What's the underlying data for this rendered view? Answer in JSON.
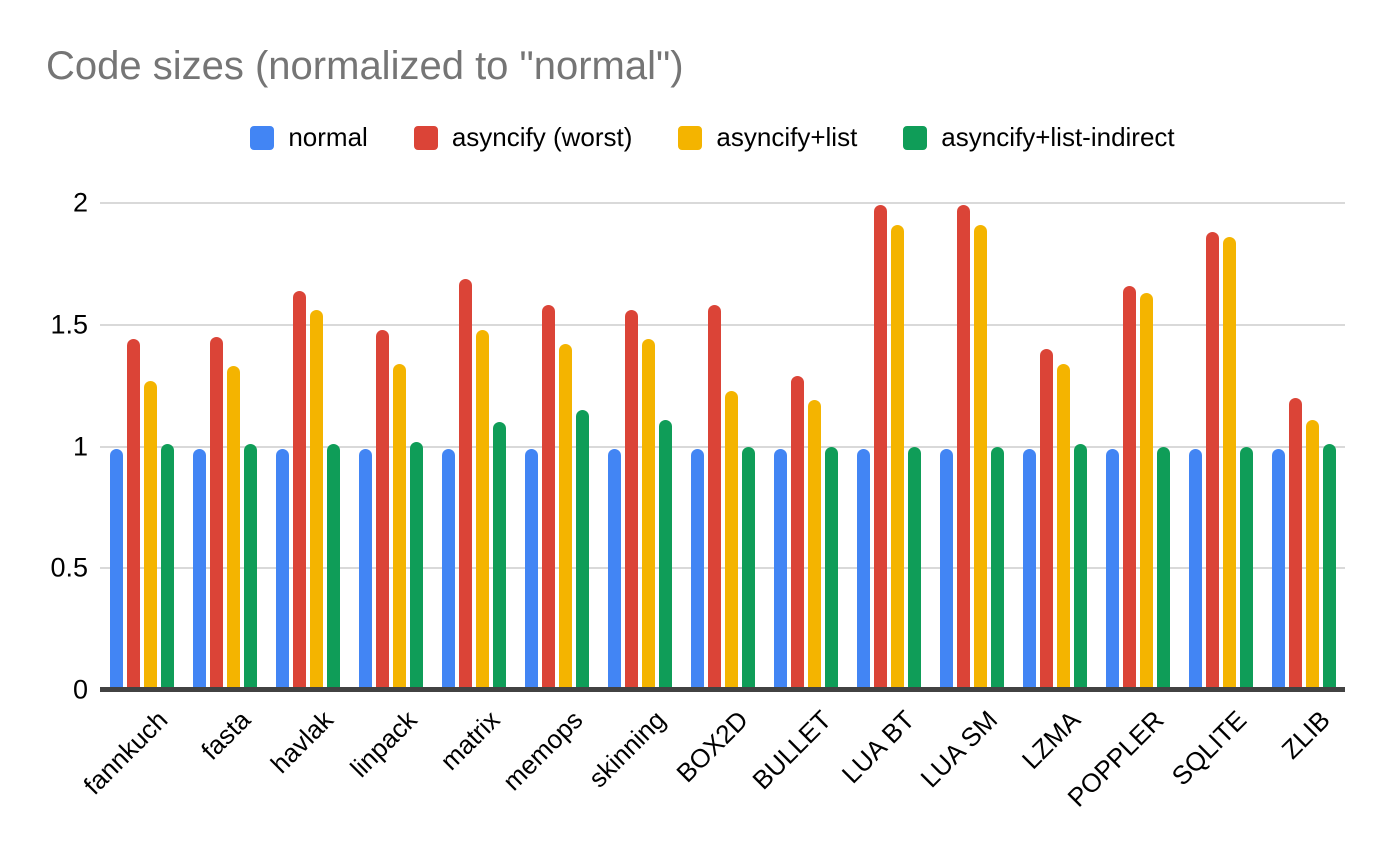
{
  "title": "Code sizes (normalized to \"normal\")",
  "title_color": "#757575",
  "chart_data": {
    "type": "bar",
    "title": "Code sizes (normalized to \"normal\")",
    "xlabel": "",
    "ylabel": "",
    "ylim": [
      0,
      2
    ],
    "y_ticks": [
      0,
      0.5,
      1,
      1.5,
      2
    ],
    "grid": true,
    "legend_position": "top",
    "axis_line_color": "#424242",
    "grid_color": "#d9d9d9",
    "categories": [
      "fannkuch",
      "fasta",
      "havlak",
      "linpack",
      "matrix",
      "memops",
      "skinning",
      "BOX2D",
      "BULLET",
      "LUA BT",
      "LUA SM",
      "LZMA",
      "POPPLER",
      "SQLITE",
      "ZLIB"
    ],
    "series": [
      {
        "name": "normal",
        "color": "#4285F4",
        "values": [
          0.99,
          0.99,
          0.99,
          0.99,
          0.99,
          0.99,
          0.99,
          0.99,
          0.99,
          0.99,
          0.99,
          0.99,
          0.99,
          0.99,
          0.99
        ]
      },
      {
        "name": "asyncify (worst)",
        "color": "#DB4437",
        "values": [
          1.44,
          1.45,
          1.64,
          1.48,
          1.69,
          1.58,
          1.56,
          1.58,
          1.29,
          1.99,
          1.99,
          1.4,
          1.66,
          1.88,
          1.2
        ]
      },
      {
        "name": "asyncify+list",
        "color": "#F4B400",
        "values": [
          1.27,
          1.33,
          1.56,
          1.34,
          1.48,
          1.42,
          1.44,
          1.23,
          1.19,
          1.91,
          1.91,
          1.34,
          1.63,
          1.86,
          1.11
        ]
      },
      {
        "name": "asyncify+list-indirect",
        "color": "#0F9D58",
        "values": [
          1.01,
          1.01,
          1.01,
          1.02,
          1.1,
          1.15,
          1.11,
          1.0,
          1.0,
          1.0,
          1.0,
          1.01,
          1.0,
          1.0,
          1.01
        ]
      }
    ]
  }
}
